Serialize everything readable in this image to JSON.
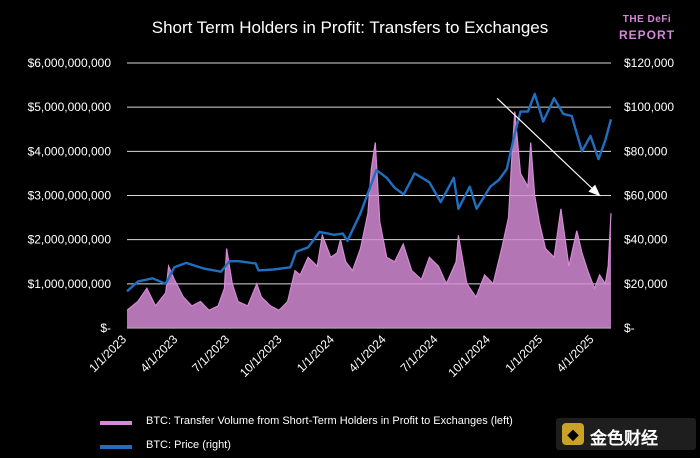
{
  "chart_data": {
    "type": "line",
    "title": "Short Term Holders in Profit: Transfers to Exchanges",
    "logo": {
      "line1": "THE DeFi",
      "line2": "REPORT"
    },
    "watermark": "金色财经",
    "x_tick_labels": [
      "1/1/2023",
      "4/1/2023",
      "7/1/2023",
      "10/1/2023",
      "1/1/2024",
      "4/1/2024",
      "7/1/2024",
      "10/1/2024",
      "1/1/2025",
      "4/1/2025"
    ],
    "xlim": [
      "2023-01-01",
      "2025-04-30"
    ],
    "y_left": {
      "label": "",
      "ylim": [
        0,
        6000000000
      ],
      "tick_labels": [
        "$-",
        "$1,000,000,000",
        "$2,000,000,000",
        "$3,000,000,000",
        "$4,000,000,000",
        "$5,000,000,000",
        "$6,000,000,000"
      ]
    },
    "y_right": {
      "label": "",
      "ylim": [
        0,
        120000
      ],
      "tick_labels": [
        "$-",
        "$20,000",
        "$40,000",
        "$60,000",
        "$80,000",
        "$100,000",
        "$120,000"
      ]
    },
    "grid": true,
    "legend_position": "bottom",
    "annotations": [
      {
        "type": "arrow",
        "from": [
          "2024-10-12",
          5200000000
        ],
        "to": [
          "2025-04-10",
          3000000000
        ],
        "color": "#ffffff"
      }
    ],
    "series": [
      {
        "name": "BTC: Transfer Volume from Short-Term Holders in Profit to Exchanges (left)",
        "axis": "left",
        "color": "#d48ad4",
        "style": "area",
        "x": [
          "2023-01-01",
          "2023-01-20",
          "2023-02-05",
          "2023-02-20",
          "2023-03-10",
          "2023-03-15",
          "2023-03-25",
          "2023-04-10",
          "2023-04-25",
          "2023-05-10",
          "2023-05-25",
          "2023-06-10",
          "2023-06-21",
          "2023-06-25",
          "2023-07-05",
          "2023-07-15",
          "2023-08-01",
          "2023-08-17",
          "2023-08-25",
          "2023-09-10",
          "2023-09-25",
          "2023-10-10",
          "2023-10-23",
          "2023-11-01",
          "2023-11-15",
          "2023-12-01",
          "2023-12-10",
          "2023-12-25",
          "2024-01-05",
          "2024-01-11",
          "2024-01-20",
          "2024-02-01",
          "2024-02-15",
          "2024-02-28",
          "2024-03-05",
          "2024-03-12",
          "2024-03-20",
          "2024-04-01",
          "2024-04-15",
          "2024-04-30",
          "2024-05-15",
          "2024-06-01",
          "2024-06-15",
          "2024-07-01",
          "2024-07-15",
          "2024-08-01",
          "2024-08-05",
          "2024-08-20",
          "2024-09-05",
          "2024-09-20",
          "2024-10-05",
          "2024-10-20",
          "2024-11-01",
          "2024-11-06",
          "2024-11-12",
          "2024-11-22",
          "2024-12-05",
          "2024-12-10",
          "2024-12-17",
          "2024-12-25",
          "2025-01-05",
          "2025-01-20",
          "2025-02-01",
          "2025-02-15",
          "2025-03-01",
          "2025-03-10",
          "2025-03-20",
          "2025-04-01",
          "2025-04-10",
          "2025-04-20",
          "2025-04-25",
          "2025-04-30"
        ],
        "values": [
          400000000,
          600000000,
          900000000,
          500000000,
          800000000,
          1400000000,
          1100000000,
          700000000,
          500000000,
          600000000,
          400000000,
          500000000,
          900000000,
          1800000000,
          1000000000,
          600000000,
          500000000,
          1000000000,
          700000000,
          500000000,
          400000000,
          600000000,
          1300000000,
          1200000000,
          1600000000,
          1400000000,
          2100000000,
          1600000000,
          1700000000,
          2000000000,
          1500000000,
          1300000000,
          1800000000,
          2600000000,
          3600000000,
          4200000000,
          2400000000,
          1600000000,
          1500000000,
          1900000000,
          1300000000,
          1100000000,
          1600000000,
          1400000000,
          1000000000,
          1500000000,
          2100000000,
          1000000000,
          700000000,
          1200000000,
          1000000000,
          1800000000,
          2500000000,
          3700000000,
          4900000000,
          3500000000,
          3200000000,
          4200000000,
          3000000000,
          2400000000,
          1800000000,
          1600000000,
          2700000000,
          1400000000,
          2200000000,
          1700000000,
          1300000000,
          900000000,
          1200000000,
          1000000000,
          1400000000,
          2600000000
        ]
      },
      {
        "name": "BTC: Price (right)",
        "axis": "right",
        "color": "#1f6ec0",
        "style": "line",
        "x": [
          "2023-01-01",
          "2023-01-20",
          "2023-02-15",
          "2023-03-10",
          "2023-03-25",
          "2023-04-15",
          "2023-05-15",
          "2023-06-15",
          "2023-06-30",
          "2023-07-15",
          "2023-08-15",
          "2023-08-20",
          "2023-09-15",
          "2023-10-15",
          "2023-10-25",
          "2023-11-15",
          "2023-12-05",
          "2023-12-31",
          "2024-01-15",
          "2024-01-23",
          "2024-02-15",
          "2024-02-28",
          "2024-03-14",
          "2024-04-01",
          "2024-04-15",
          "2024-05-01",
          "2024-05-20",
          "2024-06-15",
          "2024-07-05",
          "2024-07-28",
          "2024-08-05",
          "2024-08-25",
          "2024-09-06",
          "2024-09-30",
          "2024-10-15",
          "2024-10-29",
          "2024-11-12",
          "2024-11-22",
          "2024-12-05",
          "2024-12-17",
          "2025-01-01",
          "2025-01-20",
          "2025-02-05",
          "2025-02-20",
          "2025-03-10",
          "2025-03-25",
          "2025-04-08",
          "2025-04-20",
          "2025-04-30"
        ],
        "values": [
          16600,
          21000,
          22500,
          20000,
          27500,
          29500,
          27000,
          25500,
          30200,
          30300,
          29200,
          26100,
          26500,
          27500,
          34500,
          36500,
          43500,
          42200,
          42800,
          39500,
          52000,
          61000,
          71500,
          68000,
          63500,
          60500,
          70000,
          66000,
          57000,
          68000,
          54000,
          64000,
          54000,
          64000,
          67000,
          72000,
          88000,
          98000,
          98000,
          106000,
          93500,
          104000,
          97000,
          96000,
          80000,
          87000,
          76500,
          85000,
          94500
        ]
      }
    ]
  }
}
